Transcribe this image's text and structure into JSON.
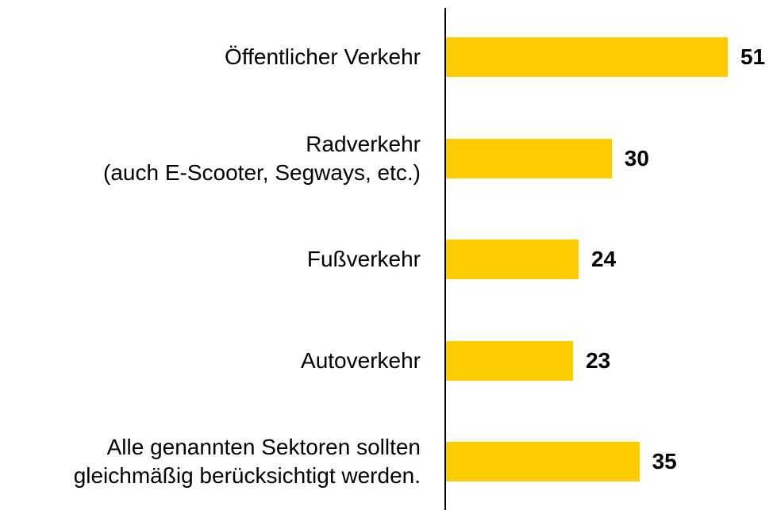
{
  "chart_data": {
    "type": "bar",
    "orientation": "horizontal",
    "categories": [
      "Öffentlicher Verkehr",
      "Radverkehr\n(auch E-Scooter, Segways, etc.)",
      "Fußverkehr",
      "Autoverkehr",
      "Alle genannten Sektoren sollten\ngleichmäßig berücksichtigt werden."
    ],
    "values": [
      51,
      30,
      24,
      23,
      35
    ],
    "color": "#ffcc00"
  }
}
